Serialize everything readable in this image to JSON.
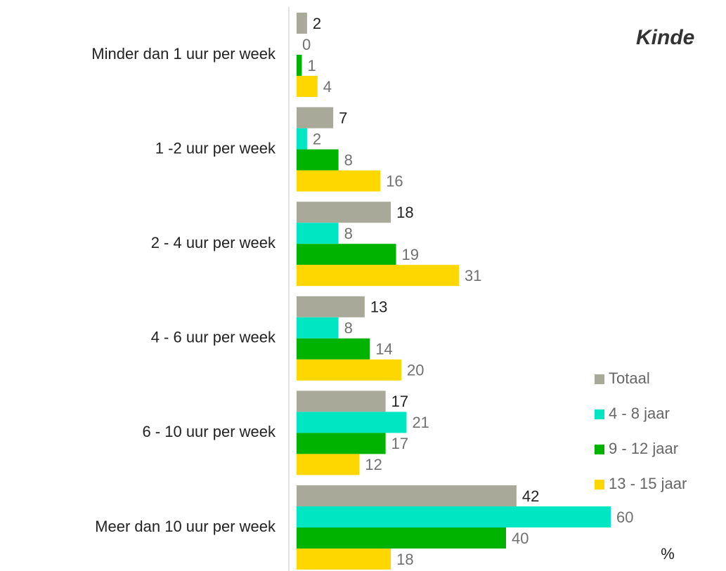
{
  "chart_data": {
    "type": "hbar",
    "title": "Kinde",
    "xlabel": "%",
    "categories": [
      "Minder dan 1 uur per week",
      "1 -2 uur per week",
      "2 - 4 uur per week",
      "4 - 6 uur per week",
      "6 - 10 uur per week",
      "Meer dan 10 uur per week"
    ],
    "series": [
      {
        "name": "Totaal",
        "color": "#a9a99a",
        "values": [
          2,
          7,
          18,
          13,
          17,
          42
        ]
      },
      {
        "name": "4 - 8 jaar",
        "color": "#00e6c3",
        "values": [
          0,
          2,
          8,
          8,
          21,
          60
        ]
      },
      {
        "name": "9 - 12 jaar",
        "color": "#00b300",
        "values": [
          1,
          8,
          19,
          14,
          17,
          40
        ]
      },
      {
        "name": "13 - 15 jaar",
        "color": "#ffd700",
        "values": [
          4,
          16,
          31,
          20,
          12,
          18
        ]
      }
    ],
    "xlim": [
      0,
      60
    ],
    "legend": "right"
  }
}
